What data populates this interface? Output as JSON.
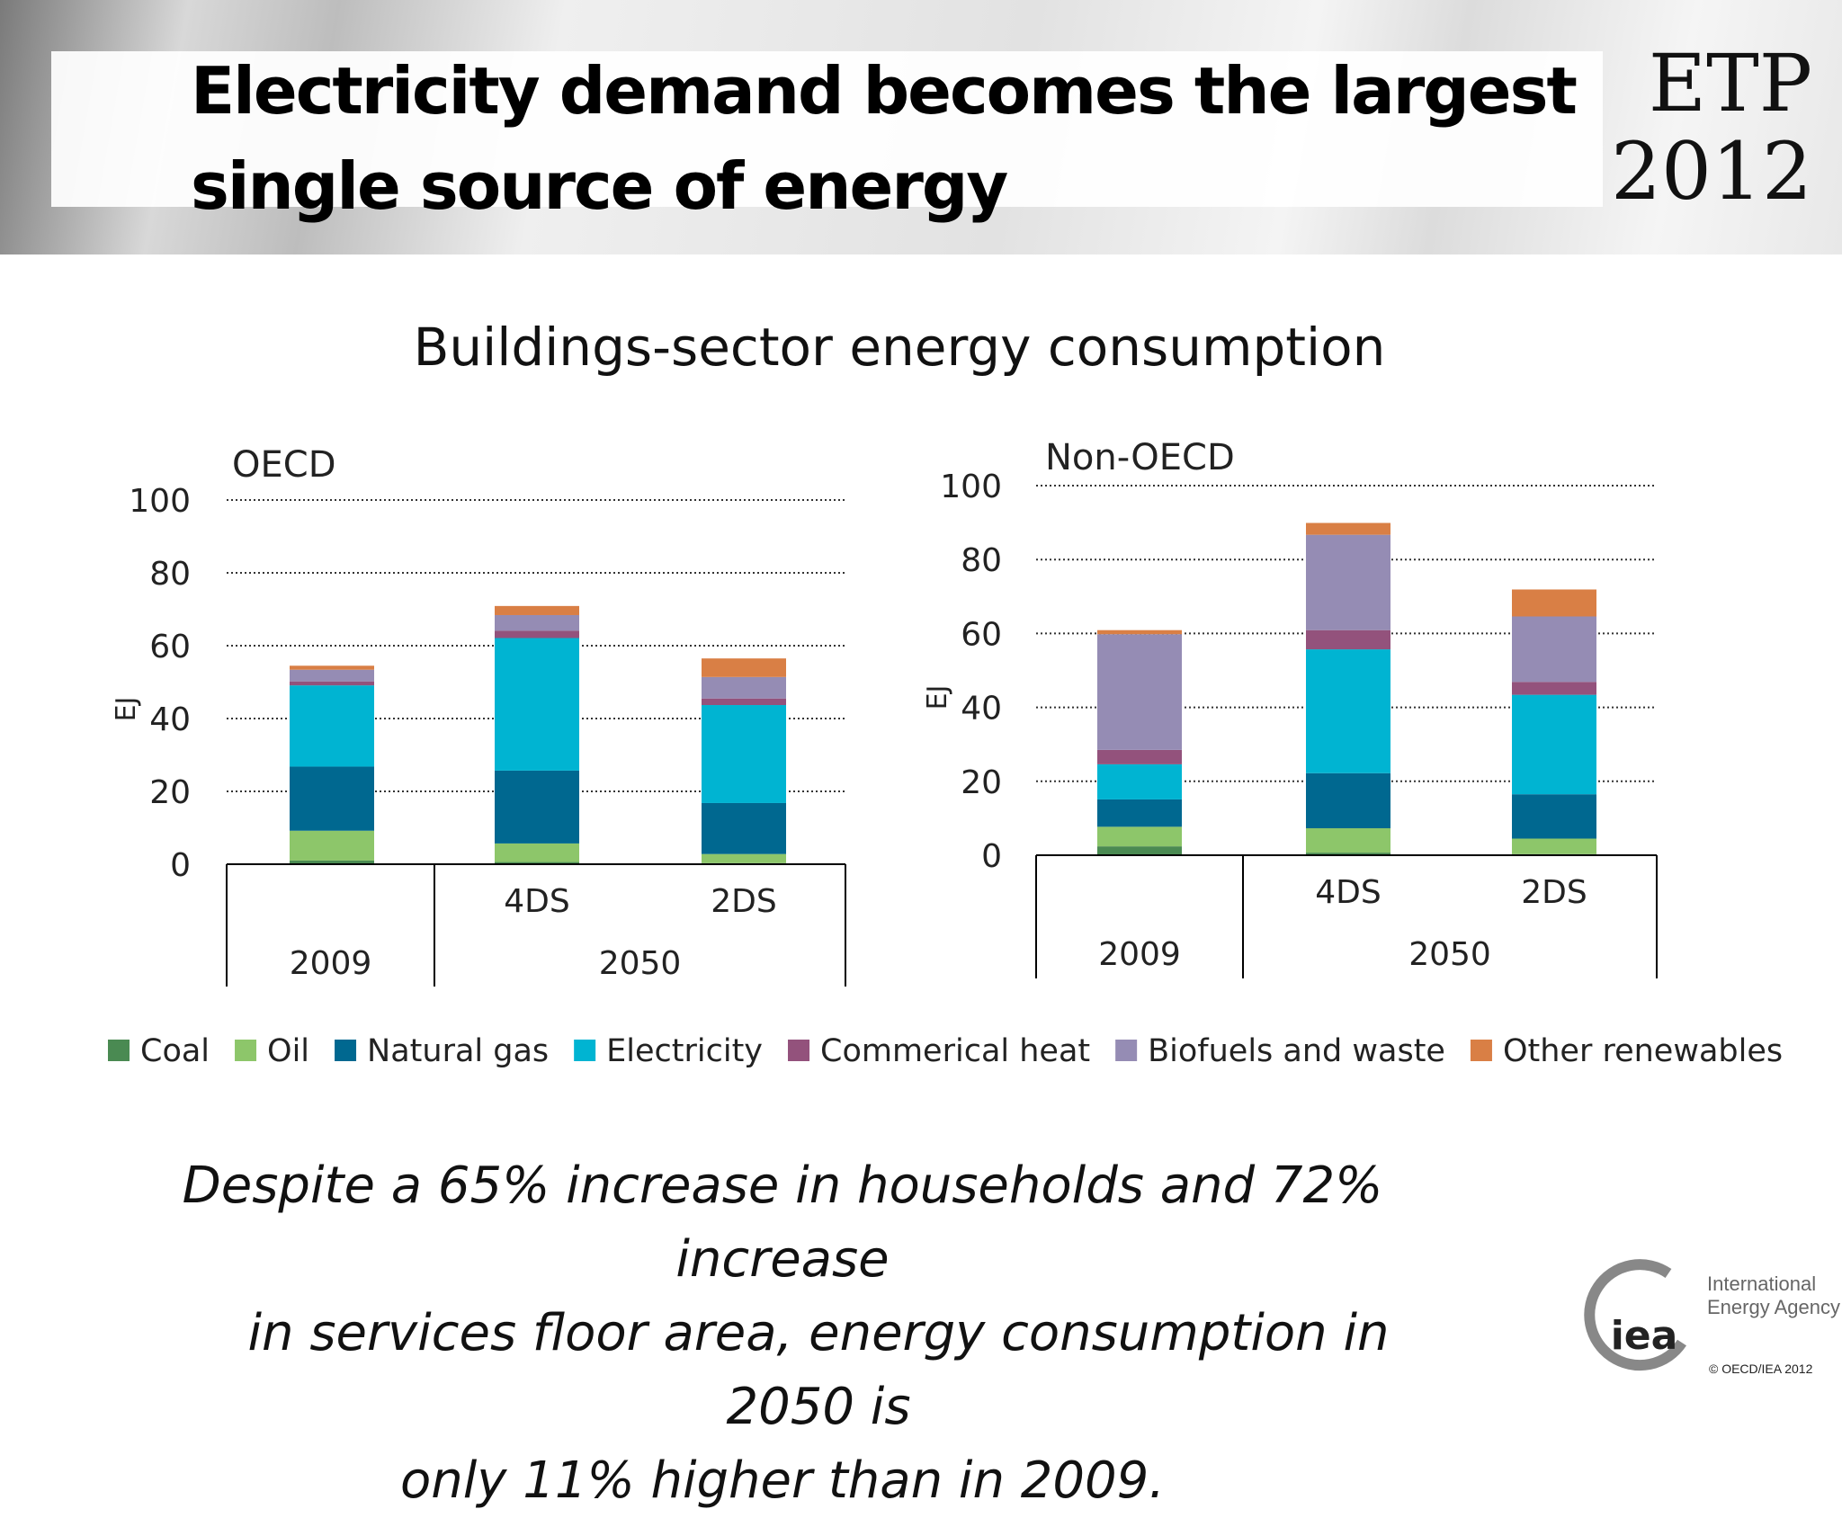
{
  "header": {
    "title_line1": "Electricity demand becomes the largest",
    "title_line2": "single source of energy",
    "badge_line1": "ETP",
    "badge_line2": "2012"
  },
  "chart_title": "Buildings-sector energy consumption",
  "legend": [
    {
      "name": "Coal",
      "color": "#4a8a52"
    },
    {
      "name": "Oil",
      "color": "#8dc66a"
    },
    {
      "name": "Natural gas",
      "color": "#006890"
    },
    {
      "name": "Electricity",
      "color": "#00b4d2"
    },
    {
      "name": "Commerical heat",
      "color": "#93527c"
    },
    {
      "name": "Biofuels and waste",
      "color": "#958cb4"
    },
    {
      "name": "Other renewables",
      "color": "#d97f45"
    }
  ],
  "chart_data": [
    {
      "type": "bar",
      "stacked": true,
      "title": "OECD",
      "ylabel": "EJ",
      "ylim": [
        0,
        100
      ],
      "yticks": [
        0,
        20,
        40,
        60,
        80,
        100
      ],
      "grid": true,
      "categories": [
        "",
        "4DS",
        "2DS"
      ],
      "groups": [
        {
          "label": "2009",
          "span": 1
        },
        {
          "label": "2050",
          "span": 2
        }
      ],
      "series": [
        {
          "name": "Coal",
          "values": [
            1.0,
            0.6,
            0.3
          ]
        },
        {
          "name": "Oil",
          "values": [
            8.2,
            5.1,
            2.5
          ]
        },
        {
          "name": "Natural gas",
          "values": [
            17.6,
            20.0,
            14.0
          ]
        },
        {
          "name": "Electricity",
          "values": [
            22.3,
            36.4,
            26.9
          ]
        },
        {
          "name": "Commerical heat",
          "values": [
            1.1,
            2.0,
            1.8
          ]
        },
        {
          "name": "Biofuels and waste",
          "values": [
            3.2,
            4.3,
            5.9
          ]
        },
        {
          "name": "Other renewables",
          "values": [
            1.1,
            2.5,
            5.1
          ]
        }
      ]
    },
    {
      "type": "bar",
      "stacked": true,
      "title": "Non-OECD",
      "ylabel": "EJ",
      "ylim": [
        0,
        100
      ],
      "yticks": [
        0,
        20,
        40,
        60,
        80,
        100
      ],
      "grid": true,
      "categories": [
        "",
        "4DS",
        "2DS"
      ],
      "groups": [
        {
          "label": "2009",
          "span": 1
        },
        {
          "label": "2050",
          "span": 2
        }
      ],
      "series": [
        {
          "name": "Coal",
          "values": [
            2.4,
            0.7,
            0.3
          ]
        },
        {
          "name": "Oil",
          "values": [
            5.3,
            6.6,
            4.2
          ]
        },
        {
          "name": "Natural gas",
          "values": [
            7.4,
            14.9,
            12.0
          ]
        },
        {
          "name": "Electricity",
          "values": [
            9.5,
            33.5,
            26.9
          ]
        },
        {
          "name": "Commerical heat",
          "values": [
            3.9,
            5.2,
            3.5
          ]
        },
        {
          "name": "Biofuels and waste",
          "values": [
            31.3,
            25.8,
            17.7
          ]
        },
        {
          "name": "Other renewables",
          "values": [
            1.1,
            3.2,
            7.3
          ]
        }
      ]
    }
  ],
  "caption": {
    "line1": "Despite a 65% increase in households and 72% increase",
    "line2": "in services floor area, energy consumption in 2050 is",
    "line3": "only 11% higher than in 2009."
  },
  "logo": {
    "mark": "iea",
    "name_line1": "International",
    "name_line2": "Energy Agency",
    "copyright": "© OECD/IEA 2012"
  }
}
